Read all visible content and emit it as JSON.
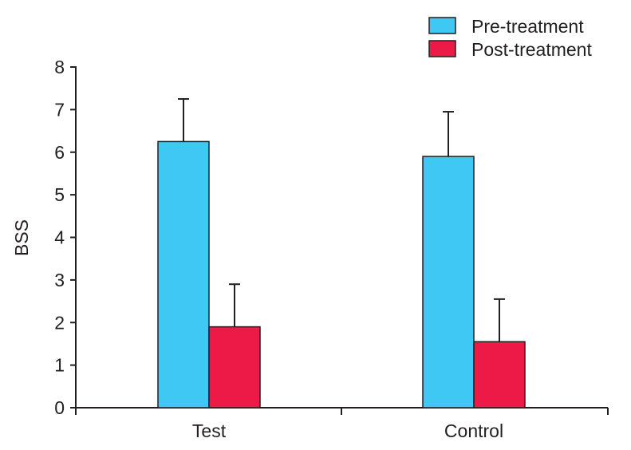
{
  "chart_data": {
    "type": "bar",
    "title": "",
    "xlabel": "",
    "ylabel": "BSS",
    "ylim": [
      0,
      8
    ],
    "yticks": [
      0,
      1,
      2,
      3,
      4,
      5,
      6,
      7,
      8
    ],
    "categories": [
      "Test",
      "Control"
    ],
    "series": [
      {
        "name": "Pre-treatment",
        "color": "#3fc8f4",
        "values": [
          6.25,
          5.9
        ],
        "errors": [
          1.0,
          1.05
        ]
      },
      {
        "name": "Post-treatment",
        "color": "#ed1a47",
        "values": [
          1.9,
          1.55
        ],
        "errors": [
          1.0,
          1.0
        ]
      }
    ],
    "legend_position": "top-right",
    "grid": false
  }
}
